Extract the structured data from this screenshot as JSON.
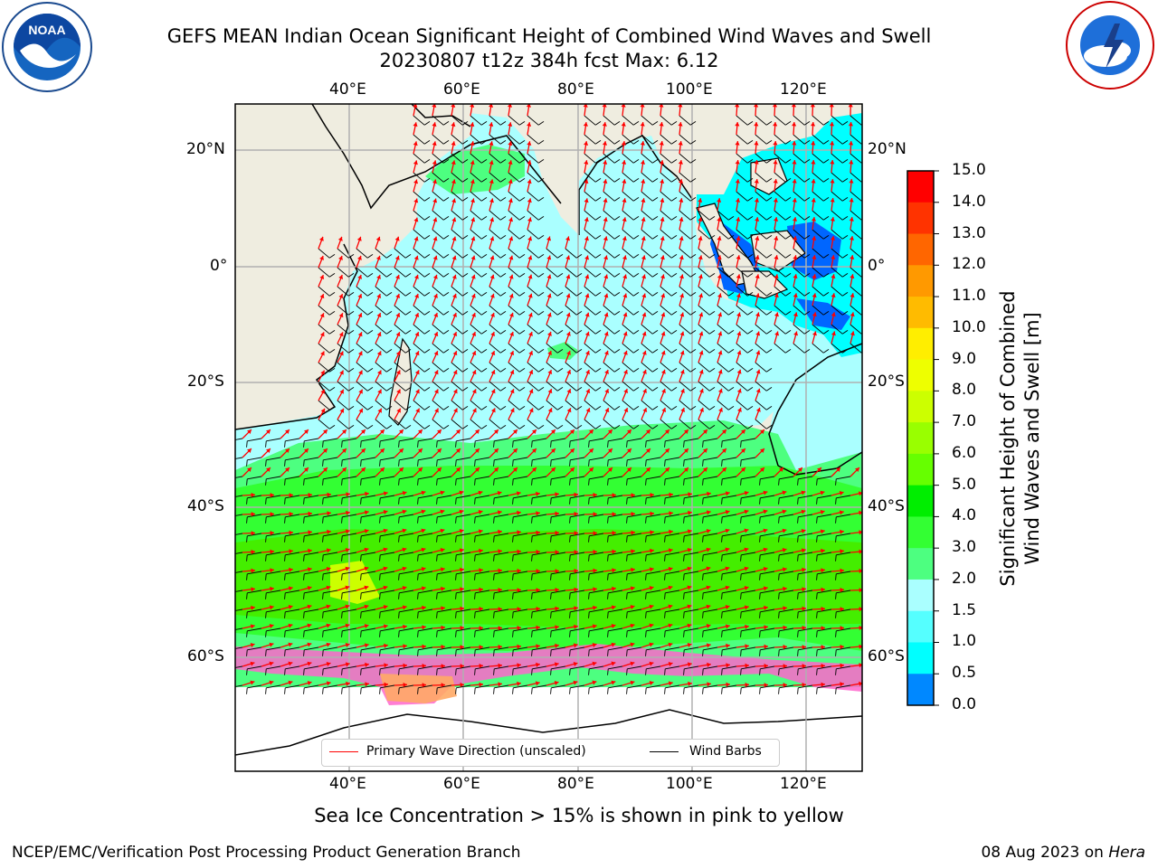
{
  "title": {
    "line1": "GEFS MEAN Indian Ocean Significant Height of Combined Wind Waves and Swell",
    "line2": "20230807 t12z 384h fcst   Max: 6.12"
  },
  "logos": {
    "noaa_text": "NOAA",
    "noaa_ring": "NATIONAL OCEANIC AND ATMOSPHERIC ADMINISTRATION · U.S. DEPARTMENT OF COMMERCE",
    "nws_ring": "NATIONAL WEATHER SERVICE"
  },
  "map": {
    "lon_top_labels": [
      "40°E",
      "60°E",
      "80°E",
      "100°E",
      "120°E"
    ],
    "lon_bottom_labels": [
      "40°E",
      "60°E",
      "80°E",
      "100°E",
      "120°E"
    ],
    "lat_left_labels": [
      "20°N",
      "0°",
      "20°S",
      "40°S",
      "60°S"
    ],
    "lat_right_labels": [
      "20°N",
      "0°",
      "20°S",
      "40°S",
      "60°S"
    ],
    "colors": {
      "land": "#efede0",
      "ocean_low": "#aaffff",
      "ocean_mid": "#4dff80",
      "ocean_high": "#33ff00",
      "ocean_peak": "#ccff00",
      "coast_shallow": "#00ffff",
      "coast_deep": "#0066ff",
      "arrow": "#ff0000",
      "barb": "#000000"
    }
  },
  "legend": {
    "wave_label": "Primary Wave Direction (unscaled)",
    "barb_label": "Wind Barbs"
  },
  "colorbar": {
    "ticks": [
      "15.0",
      "14.0",
      "13.0",
      "12.0",
      "11.0",
      "10.0",
      "9.0",
      "8.0",
      "7.0",
      "6.0",
      "5.0",
      "4.0",
      "3.0",
      "2.0",
      "1.5",
      "1.0",
      "0.5",
      "0.0"
    ],
    "colors": [
      "#ff0000",
      "#ff3300",
      "#ff6600",
      "#ff9900",
      "#ffbb00",
      "#ffee00",
      "#eeff00",
      "#ccff00",
      "#99ff00",
      "#66ff00",
      "#00ee00",
      "#33ff33",
      "#4dff80",
      "#aaffff",
      "#55ffff",
      "#00ffff",
      "#0088ff",
      "#0000ff"
    ],
    "label_line1": "Significant Height of Combined",
    "label_line2": "Wind Waves and Swell [m]"
  },
  "footer": {
    "sea_ice_note": "Sea Ice Concentration > 15% is shown in pink to yellow",
    "credit": "NCEP/EMC/Verification Post Processing Product Generation Branch",
    "date": "08 Aug 2023 on",
    "machine": "Hera"
  }
}
